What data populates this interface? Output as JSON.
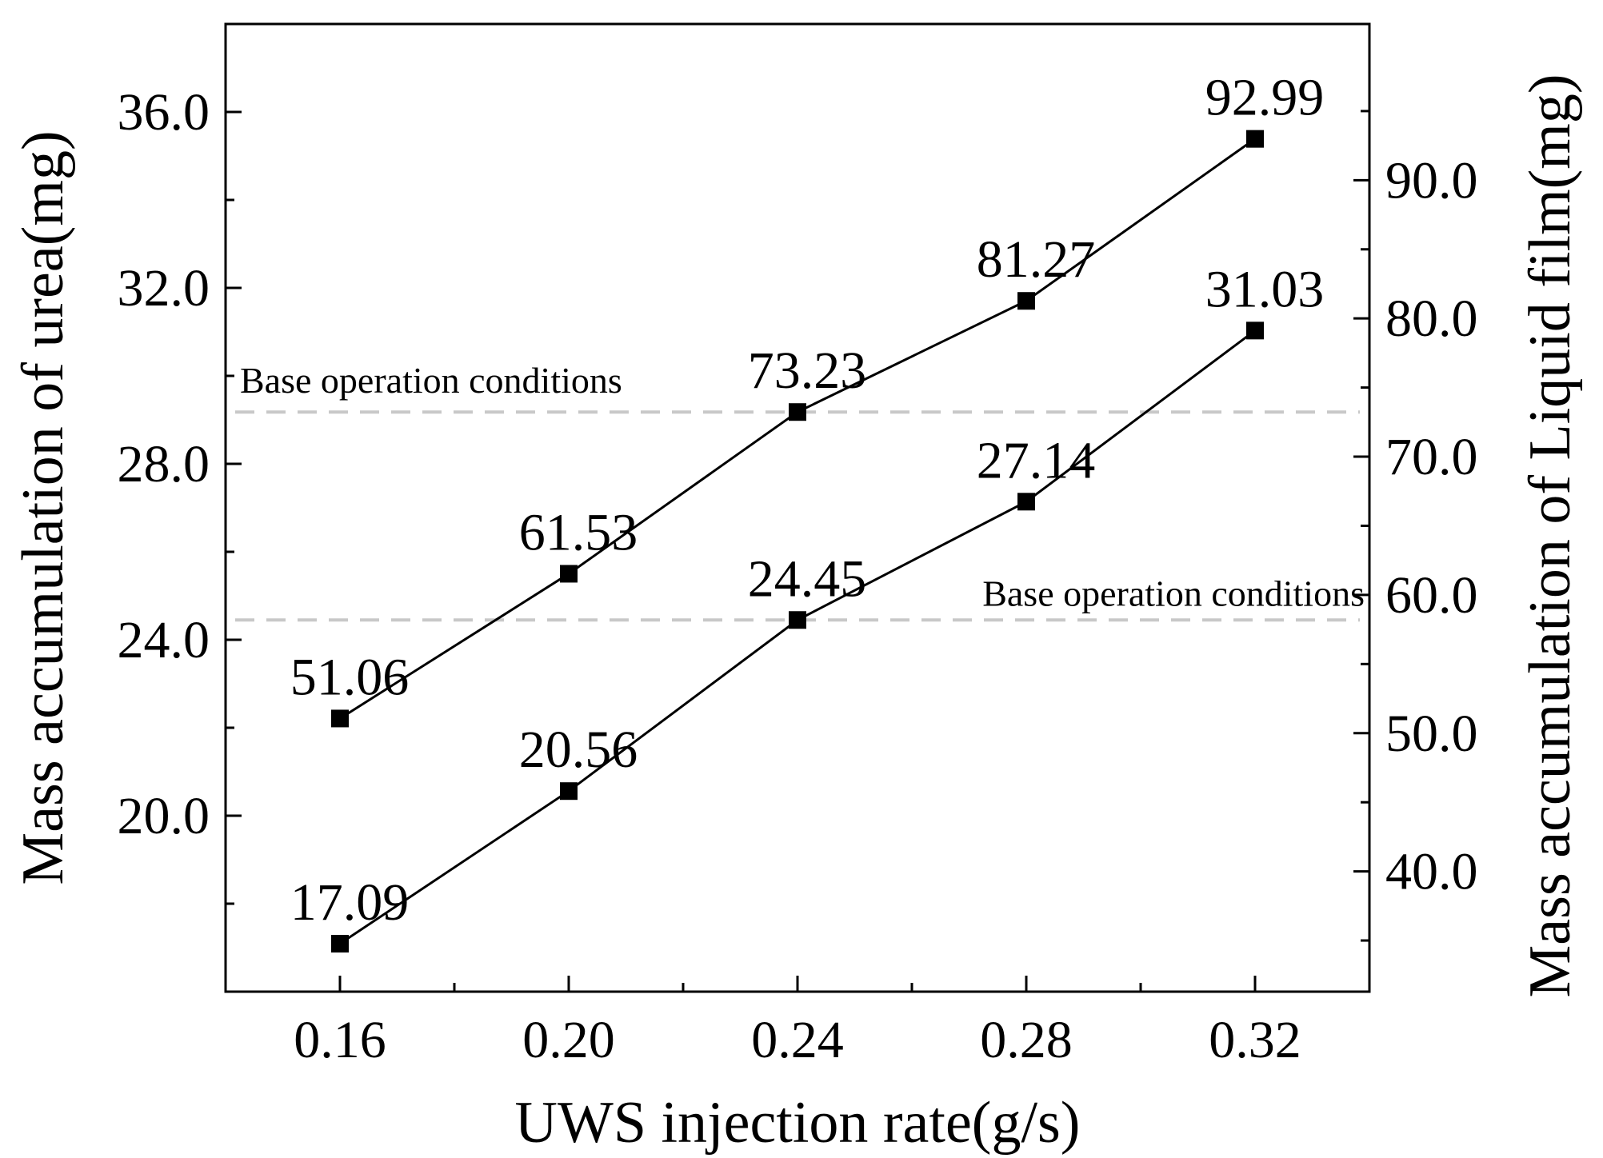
{
  "chart_data": {
    "type": "line",
    "xlabel": "UWS injection rate(g/s)",
    "ylabel_left": "Mass accumulation of urea(mg)",
    "ylabel_right": "Mass accumulation of Liquid film(mg)",
    "x": [
      0.16,
      0.2,
      0.24,
      0.28,
      0.32
    ],
    "x_tick_labels": [
      "0.16",
      "0.20",
      "0.24",
      "0.28",
      "0.32"
    ],
    "xlim": [
      0.14,
      0.34
    ],
    "ylim_left": [
      16.0,
      38.0
    ],
    "ylim_right": [
      31.3,
      101.3
    ],
    "y_ticks_left": [
      "20.0",
      "24.0",
      "28.0",
      "32.0",
      "36.0"
    ],
    "y_ticks_right": [
      "40.0",
      "50.0",
      "60.0",
      "70.0",
      "80.0",
      "90.0"
    ],
    "series": [
      {
        "axis": "right",
        "values": [
          51.06,
          61.53,
          73.23,
          81.27,
          92.99
        ],
        "labels": [
          "51.06",
          "61.53",
          "73.23",
          "81.27",
          "92.99"
        ]
      },
      {
        "axis": "left",
        "values": [
          17.09,
          20.56,
          24.45,
          27.14,
          31.03
        ],
        "labels": [
          "17.09",
          "20.56",
          "24.45",
          "27.14",
          "31.03"
        ]
      }
    ],
    "reference_lines": [
      {
        "axis": "right",
        "value": 73.23,
        "label": "Base operation conditions"
      },
      {
        "axis": "left",
        "value": 24.45,
        "label": "Base operation conditions"
      }
    ],
    "grid": false,
    "legend": "none",
    "colors": {
      "line": "#000000",
      "marker": "#000000",
      "reference": "#c8c8c8"
    }
  }
}
